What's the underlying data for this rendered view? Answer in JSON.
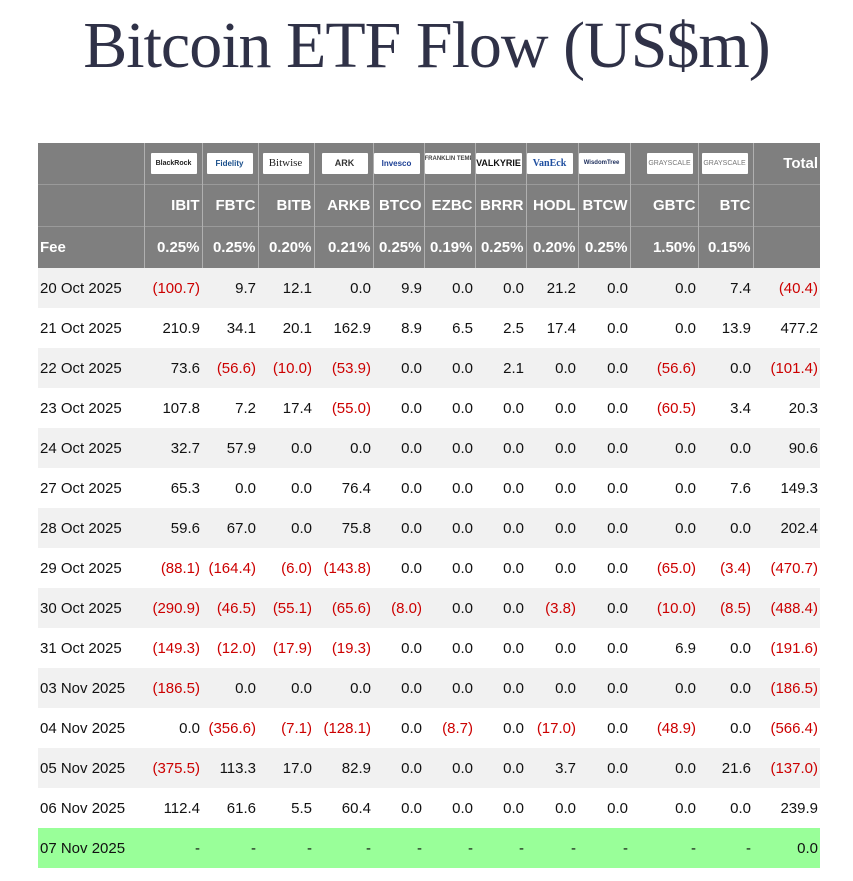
{
  "title": "Bitcoin ETF Flow (US$m)",
  "header": {
    "logos": [
      "BlackRock",
      "Fidelity",
      "Bitwise",
      "ARK",
      "Invesco",
      "FRANKLIN TEMPLETON",
      "VALKYRIE",
      "VanEck",
      "WisdomTree",
      "GRAYSCALE",
      "GRAYSCALE"
    ],
    "total_label": "Total",
    "tickers": [
      "IBIT",
      "FBTC",
      "BITB",
      "ARKB",
      "BTCO",
      "EZBC",
      "BRRR",
      "HODL",
      "BTCW",
      "GBTC",
      "BTC"
    ],
    "fee_label": "Fee",
    "fees": [
      "0.25%",
      "0.25%",
      "0.20%",
      "0.21%",
      "0.25%",
      "0.19%",
      "0.25%",
      "0.20%",
      "0.25%",
      "1.50%",
      "0.15%"
    ]
  },
  "rows": [
    {
      "date": "20 Oct 2025",
      "values": [
        "(100.7)",
        "9.7",
        "12.1",
        "0.0",
        "9.9",
        "0.0",
        "0.0",
        "21.2",
        "0.0",
        "0.0",
        "7.4"
      ],
      "total": "(40.4)"
    },
    {
      "date": "21 Oct 2025",
      "values": [
        "210.9",
        "34.1",
        "20.1",
        "162.9",
        "8.9",
        "6.5",
        "2.5",
        "17.4",
        "0.0",
        "0.0",
        "13.9"
      ],
      "total": "477.2"
    },
    {
      "date": "22 Oct 2025",
      "values": [
        "73.6",
        "(56.6)",
        "(10.0)",
        "(53.9)",
        "0.0",
        "0.0",
        "2.1",
        "0.0",
        "0.0",
        "(56.6)",
        "0.0"
      ],
      "total": "(101.4)"
    },
    {
      "date": "23 Oct 2025",
      "values": [
        "107.8",
        "7.2",
        "17.4",
        "(55.0)",
        "0.0",
        "0.0",
        "0.0",
        "0.0",
        "0.0",
        "(60.5)",
        "3.4"
      ],
      "total": "20.3"
    },
    {
      "date": "24 Oct 2025",
      "values": [
        "32.7",
        "57.9",
        "0.0",
        "0.0",
        "0.0",
        "0.0",
        "0.0",
        "0.0",
        "0.0",
        "0.0",
        "0.0"
      ],
      "total": "90.6"
    },
    {
      "date": "27 Oct 2025",
      "values": [
        "65.3",
        "0.0",
        "0.0",
        "76.4",
        "0.0",
        "0.0",
        "0.0",
        "0.0",
        "0.0",
        "0.0",
        "7.6"
      ],
      "total": "149.3"
    },
    {
      "date": "28 Oct 2025",
      "values": [
        "59.6",
        "67.0",
        "0.0",
        "75.8",
        "0.0",
        "0.0",
        "0.0",
        "0.0",
        "0.0",
        "0.0",
        "0.0"
      ],
      "total": "202.4"
    },
    {
      "date": "29 Oct 2025",
      "values": [
        "(88.1)",
        "(164.4)",
        "(6.0)",
        "(143.8)",
        "0.0",
        "0.0",
        "0.0",
        "0.0",
        "0.0",
        "(65.0)",
        "(3.4)"
      ],
      "total": "(470.7)"
    },
    {
      "date": "30 Oct 2025",
      "values": [
        "(290.9)",
        "(46.5)",
        "(55.1)",
        "(65.6)",
        "(8.0)",
        "0.0",
        "0.0",
        "(3.8)",
        "0.0",
        "(10.0)",
        "(8.5)"
      ],
      "total": "(488.4)"
    },
    {
      "date": "31 Oct 2025",
      "values": [
        "(149.3)",
        "(12.0)",
        "(17.9)",
        "(19.3)",
        "0.0",
        "0.0",
        "0.0",
        "0.0",
        "0.0",
        "6.9",
        "0.0"
      ],
      "total": "(191.6)"
    },
    {
      "date": "03 Nov 2025",
      "values": [
        "(186.5)",
        "0.0",
        "0.0",
        "0.0",
        "0.0",
        "0.0",
        "0.0",
        "0.0",
        "0.0",
        "0.0",
        "0.0"
      ],
      "total": "(186.5)"
    },
    {
      "date": "04 Nov 2025",
      "values": [
        "0.0",
        "(356.6)",
        "(7.1)",
        "(128.1)",
        "0.0",
        "(8.7)",
        "0.0",
        "(17.0)",
        "0.0",
        "(48.9)",
        "0.0"
      ],
      "total": "(566.4)"
    },
    {
      "date": "05 Nov 2025",
      "values": [
        "(375.5)",
        "113.3",
        "17.0",
        "82.9",
        "0.0",
        "0.0",
        "0.0",
        "3.7",
        "0.0",
        "0.0",
        "21.6"
      ],
      "total": "(137.0)"
    },
    {
      "date": "06 Nov 2025",
      "values": [
        "112.4",
        "61.6",
        "5.5",
        "60.4",
        "0.0",
        "0.0",
        "0.0",
        "0.0",
        "0.0",
        "0.0",
        "0.0"
      ],
      "total": "239.9"
    },
    {
      "date": "07 Nov 2025",
      "values": [
        "-",
        "-",
        "-",
        "-",
        "-",
        "-",
        "-",
        "-",
        "-",
        "-",
        "-"
      ],
      "total": "0.0"
    }
  ],
  "colors": {
    "header_bg": "#7f7f7f",
    "negative": "#cc0000",
    "latest_row": "#99ff99",
    "title": "#2f3147"
  }
}
